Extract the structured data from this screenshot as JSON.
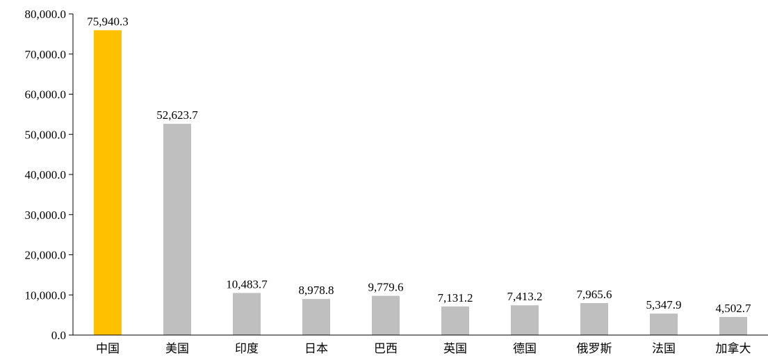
{
  "chart_data": {
    "type": "bar",
    "categories": [
      "中国",
      "美国",
      "印度",
      "日本",
      "巴西",
      "英国",
      "德国",
      "俄罗斯",
      "法国",
      "加拿大"
    ],
    "values": [
      75940.3,
      52623.7,
      10483.7,
      8978.8,
      9779.6,
      7131.2,
      7413.2,
      7965.6,
      5347.9,
      4502.7
    ],
    "value_labels": [
      "75,940.3",
      "52,623.7",
      "10,483.7",
      "8,978.8",
      "9,779.6",
      "7,131.2",
      "7,413.2",
      "7,965.6",
      "5,347.9",
      "4,502.7"
    ],
    "y_ticks": [
      "0.0",
      "10,000.0",
      "20,000.0",
      "30,000.0",
      "40,000.0",
      "50,000.0",
      "60,000.0",
      "70,000.0",
      "80,000.0"
    ],
    "ylim": [
      0,
      80000
    ],
    "grid": false,
    "colors": {
      "highlight": "#FFC000",
      "default": "#BFBFBF",
      "axis": "#000000"
    },
    "highlight_index": 0
  }
}
